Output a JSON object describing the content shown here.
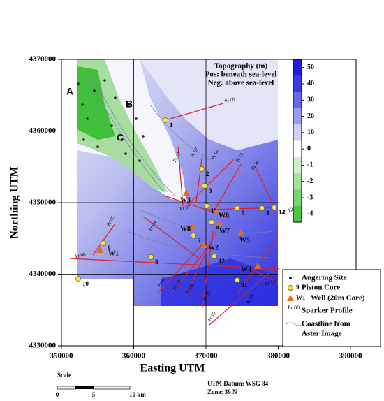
{
  "title": [
    "Topography (m)",
    "Pos: beneath sea-level",
    "Neg: above sea-level"
  ],
  "axes": {
    "x_label": "Easting UTM",
    "y_label": "Northing UTM",
    "xticks": [
      350000,
      360000,
      370000,
      380000,
      390000
    ],
    "yticks": [
      4370000,
      4360000,
      4350000,
      4340000,
      4330000
    ]
  },
  "colorbar": {
    "ticks": [
      50,
      40,
      30,
      20,
      10,
      0,
      -1,
      -2,
      -3,
      -4
    ]
  },
  "places": [
    "A",
    "B",
    "C"
  ],
  "piston_cores": [
    "1",
    "2",
    "3",
    "4",
    "5",
    "6",
    "7",
    "8",
    "9",
    "10",
    "11",
    "12",
    "13",
    "14"
  ],
  "wells": [
    "W1",
    "W2",
    "W3",
    "W4",
    "W5",
    "W6",
    "W7",
    "W8"
  ],
  "profiles": [
    "Pr 08",
    "Pr 01",
    "Pr 02",
    "Pr 17",
    "Pr 11",
    "Pr 16",
    "Pr 12",
    "Pr 07",
    "Pr 04",
    "Pr 05",
    "Pr 06",
    "Pr 03",
    "Pr 18",
    "Pr 09",
    "Pr 10",
    "Pr 15",
    "Pr 14",
    "Pr 13"
  ],
  "legend": {
    "augering": "Augering Site",
    "core_symbol": "9",
    "core": "Piston Core",
    "well_symbol": "W1",
    "well": "Well (20m Core)",
    "profile_symbol": "Pr 08",
    "profile": "Sparker Profile",
    "coastline": [
      "Coastline from",
      "Aster Image"
    ]
  },
  "scale": {
    "title": "Scale",
    "ticks": [
      "0",
      "5",
      "10 km"
    ]
  },
  "datum": [
    "UTM Datum: WSG 84",
    "Zone: 39 N"
  ]
}
